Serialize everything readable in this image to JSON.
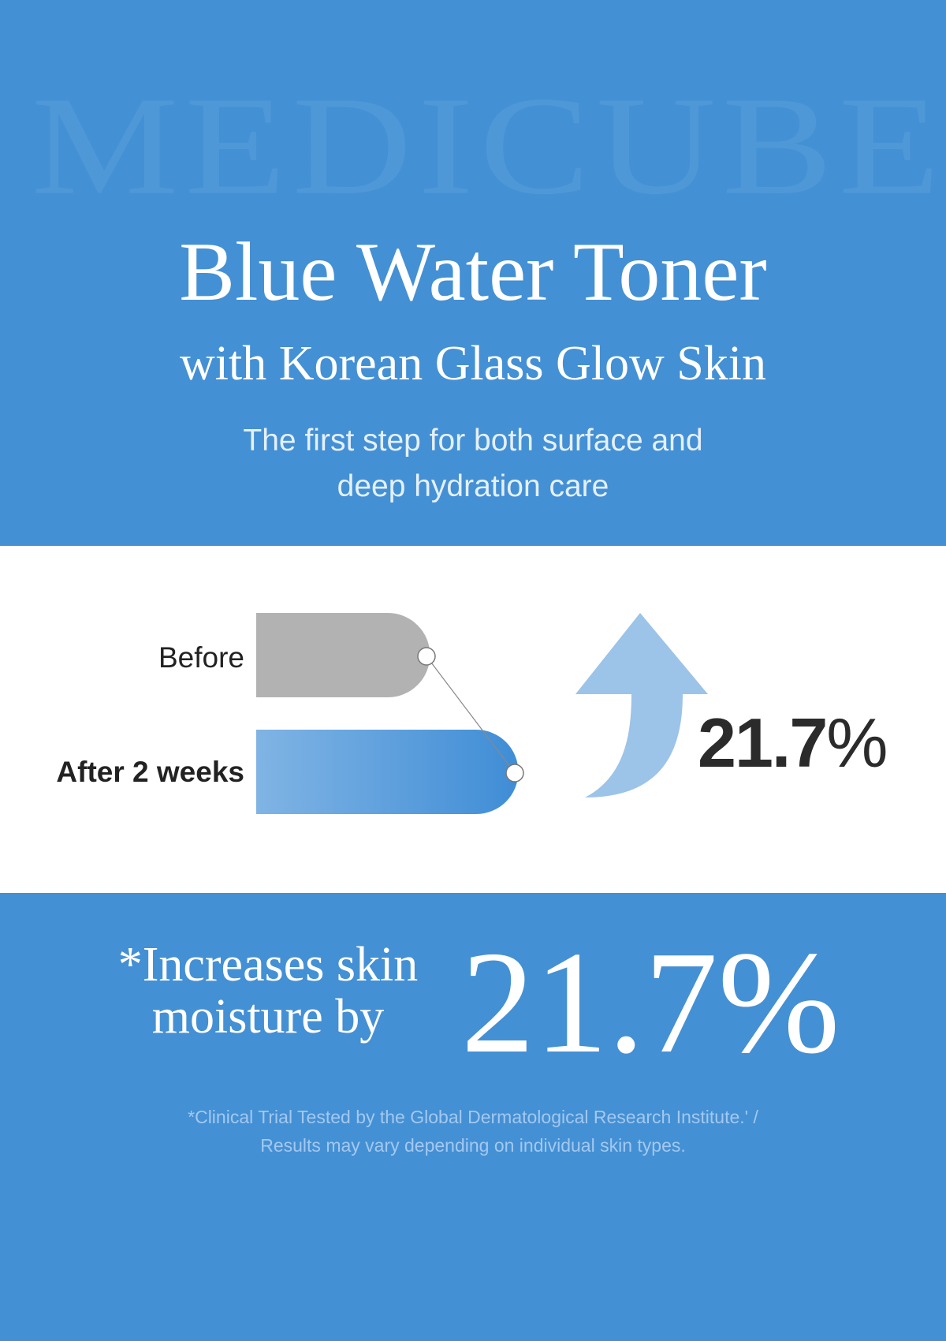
{
  "watermark": "MEDICUBE",
  "header": {
    "title": "Blue Water Toner",
    "subtitle": "with Korean Glass Glow Skin",
    "tagline_1": "The first step for both surface and",
    "tagline_2": "deep hydration care"
  },
  "comparison": {
    "before_label": "Before",
    "after_label": "After 2 weeks",
    "increase": "21.7",
    "percent_sign": "%",
    "icon": "arrow-up-icon",
    "colors": {
      "before": "#b2b2b2",
      "after_start": "#80b4e4",
      "after_end": "#3f8dd6",
      "arrow": "#9cc3e8"
    }
  },
  "claim": {
    "line_1": "*Increases skin",
    "line_2": "moisture by",
    "value": "21.7%"
  },
  "footnote": {
    "line_1": "*Clinical Trial Tested by the Global Dermatological Research Institute.' /",
    "line_2": "Results may vary depending on individual skin types."
  },
  "colors": {
    "background": "#4490d4",
    "panel": "#ffffff"
  }
}
